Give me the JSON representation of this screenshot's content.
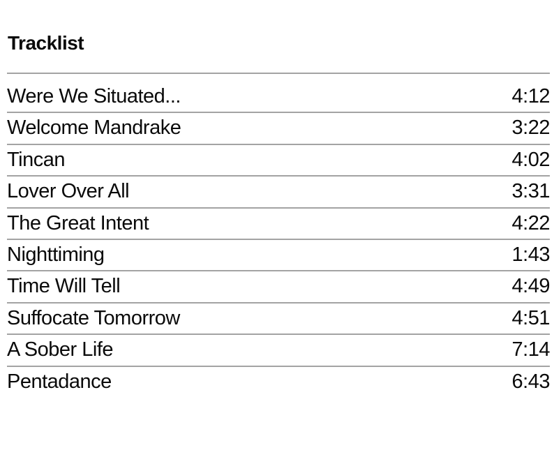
{
  "page": {
    "title": "Tracklist"
  },
  "tracklist": {
    "tracks": [
      {
        "title": "Were We Situated...",
        "duration": "4:12"
      },
      {
        "title": "Welcome Mandrake",
        "duration": "3:22"
      },
      {
        "title": "Tincan",
        "duration": "4:02"
      },
      {
        "title": "Lover Over All",
        "duration": "3:31"
      },
      {
        "title": "The Great Intent",
        "duration": "4:22"
      },
      {
        "title": "Nighttiming",
        "duration": "1:43"
      },
      {
        "title": "Time Will Tell",
        "duration": "4:49"
      },
      {
        "title": "Suffocate Tomorrow",
        "duration": "4:51"
      },
      {
        "title": "A Sober Life",
        "duration": "7:14"
      },
      {
        "title": "Pentadance",
        "duration": "6:43"
      }
    ]
  },
  "colors": {
    "background": "#ffffff",
    "text": "#0a0a0a",
    "divider": "#a3a3a3"
  }
}
